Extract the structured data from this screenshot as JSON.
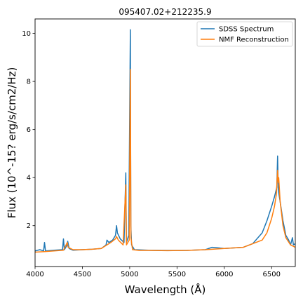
{
  "chart_data": {
    "type": "line",
    "title": "095407.02+212235.9",
    "xlabel": "Wavelength (Å)",
    "ylabel": "Flux (10^-15? erg/s/cm2/Hz)",
    "xlim": [
      4000,
      6750
    ],
    "ylim": [
      0.3,
      10.6
    ],
    "xticks": [
      4000,
      4500,
      5000,
      5500,
      6000,
      6500
    ],
    "yticks": [
      2,
      4,
      6,
      8,
      10
    ],
    "grid": false,
    "legend": {
      "position": "top-right"
    },
    "series": [
      {
        "name": "SDSS Spectrum",
        "color": "#1f77b4",
        "points": [
          [
            4000,
            0.95
          ],
          [
            4050,
            1.0
          ],
          [
            4090,
            0.95
          ],
          [
            4100,
            1.3
          ],
          [
            4110,
            0.95
          ],
          [
            4200,
            0.98
          ],
          [
            4290,
            1.0
          ],
          [
            4300,
            1.45
          ],
          [
            4310,
            1.0
          ],
          [
            4340,
            1.2
          ],
          [
            4345,
            1.35
          ],
          [
            4360,
            1.05
          ],
          [
            4400,
            0.98
          ],
          [
            4500,
            1.0
          ],
          [
            4600,
            1.02
          ],
          [
            4700,
            1.05
          ],
          [
            4750,
            1.2
          ],
          [
            4760,
            1.4
          ],
          [
            4780,
            1.3
          ],
          [
            4820,
            1.4
          ],
          [
            4850,
            1.6
          ],
          [
            4861,
            2.0
          ],
          [
            4870,
            1.7
          ],
          [
            4900,
            1.45
          ],
          [
            4940,
            1.3
          ],
          [
            4959,
            4.2
          ],
          [
            4965,
            1.3
          ],
          [
            4990,
            1.6
          ],
          [
            5007,
            10.15
          ],
          [
            5012,
            2.0
          ],
          [
            5020,
            1.2
          ],
          [
            5050,
            1.0
          ],
          [
            5200,
            0.98
          ],
          [
            5400,
            0.97
          ],
          [
            5600,
            0.97
          ],
          [
            5800,
            1.0
          ],
          [
            5870,
            1.1
          ],
          [
            6000,
            1.05
          ],
          [
            6200,
            1.1
          ],
          [
            6300,
            1.25
          ],
          [
            6400,
            1.7
          ],
          [
            6450,
            2.2
          ],
          [
            6500,
            2.8
          ],
          [
            6530,
            3.2
          ],
          [
            6555,
            3.6
          ],
          [
            6563,
            4.9
          ],
          [
            6570,
            3.5
          ],
          [
            6590,
            3.0
          ],
          [
            6620,
            2.2
          ],
          [
            6650,
            1.6
          ],
          [
            6680,
            1.4
          ],
          [
            6700,
            1.2
          ],
          [
            6720,
            1.5
          ],
          [
            6730,
            1.2
          ],
          [
            6750,
            1.25
          ]
        ]
      },
      {
        "name": "NMF Reconstruction",
        "color": "#ff7f0e",
        "points": [
          [
            4000,
            0.9
          ],
          [
            4100,
            0.92
          ],
          [
            4200,
            0.95
          ],
          [
            4300,
            0.98
          ],
          [
            4340,
            1.3
          ],
          [
            4350,
            1.1
          ],
          [
            4400,
            1.0
          ],
          [
            4500,
            1.0
          ],
          [
            4600,
            1.02
          ],
          [
            4700,
            1.05
          ],
          [
            4800,
            1.3
          ],
          [
            4850,
            1.45
          ],
          [
            4861,
            1.55
          ],
          [
            4880,
            1.4
          ],
          [
            4930,
            1.2
          ],
          [
            4959,
            3.7
          ],
          [
            4966,
            1.2
          ],
          [
            4995,
            1.4
          ],
          [
            5007,
            8.5
          ],
          [
            5013,
            1.5
          ],
          [
            5030,
            1.0
          ],
          [
            5100,
            0.97
          ],
          [
            5200,
            0.97
          ],
          [
            5400,
            0.96
          ],
          [
            5600,
            0.97
          ],
          [
            5800,
            1.0
          ],
          [
            6000,
            1.05
          ],
          [
            6200,
            1.1
          ],
          [
            6300,
            1.25
          ],
          [
            6400,
            1.4
          ],
          [
            6450,
            1.7
          ],
          [
            6500,
            2.3
          ],
          [
            6530,
            2.8
          ],
          [
            6550,
            3.3
          ],
          [
            6563,
            4.3
          ],
          [
            6570,
            3.8
          ],
          [
            6575,
            4.0
          ],
          [
            6590,
            3.0
          ],
          [
            6620,
            2.0
          ],
          [
            6650,
            1.5
          ],
          [
            6700,
            1.2
          ],
          [
            6750,
            1.1
          ]
        ]
      }
    ]
  }
}
